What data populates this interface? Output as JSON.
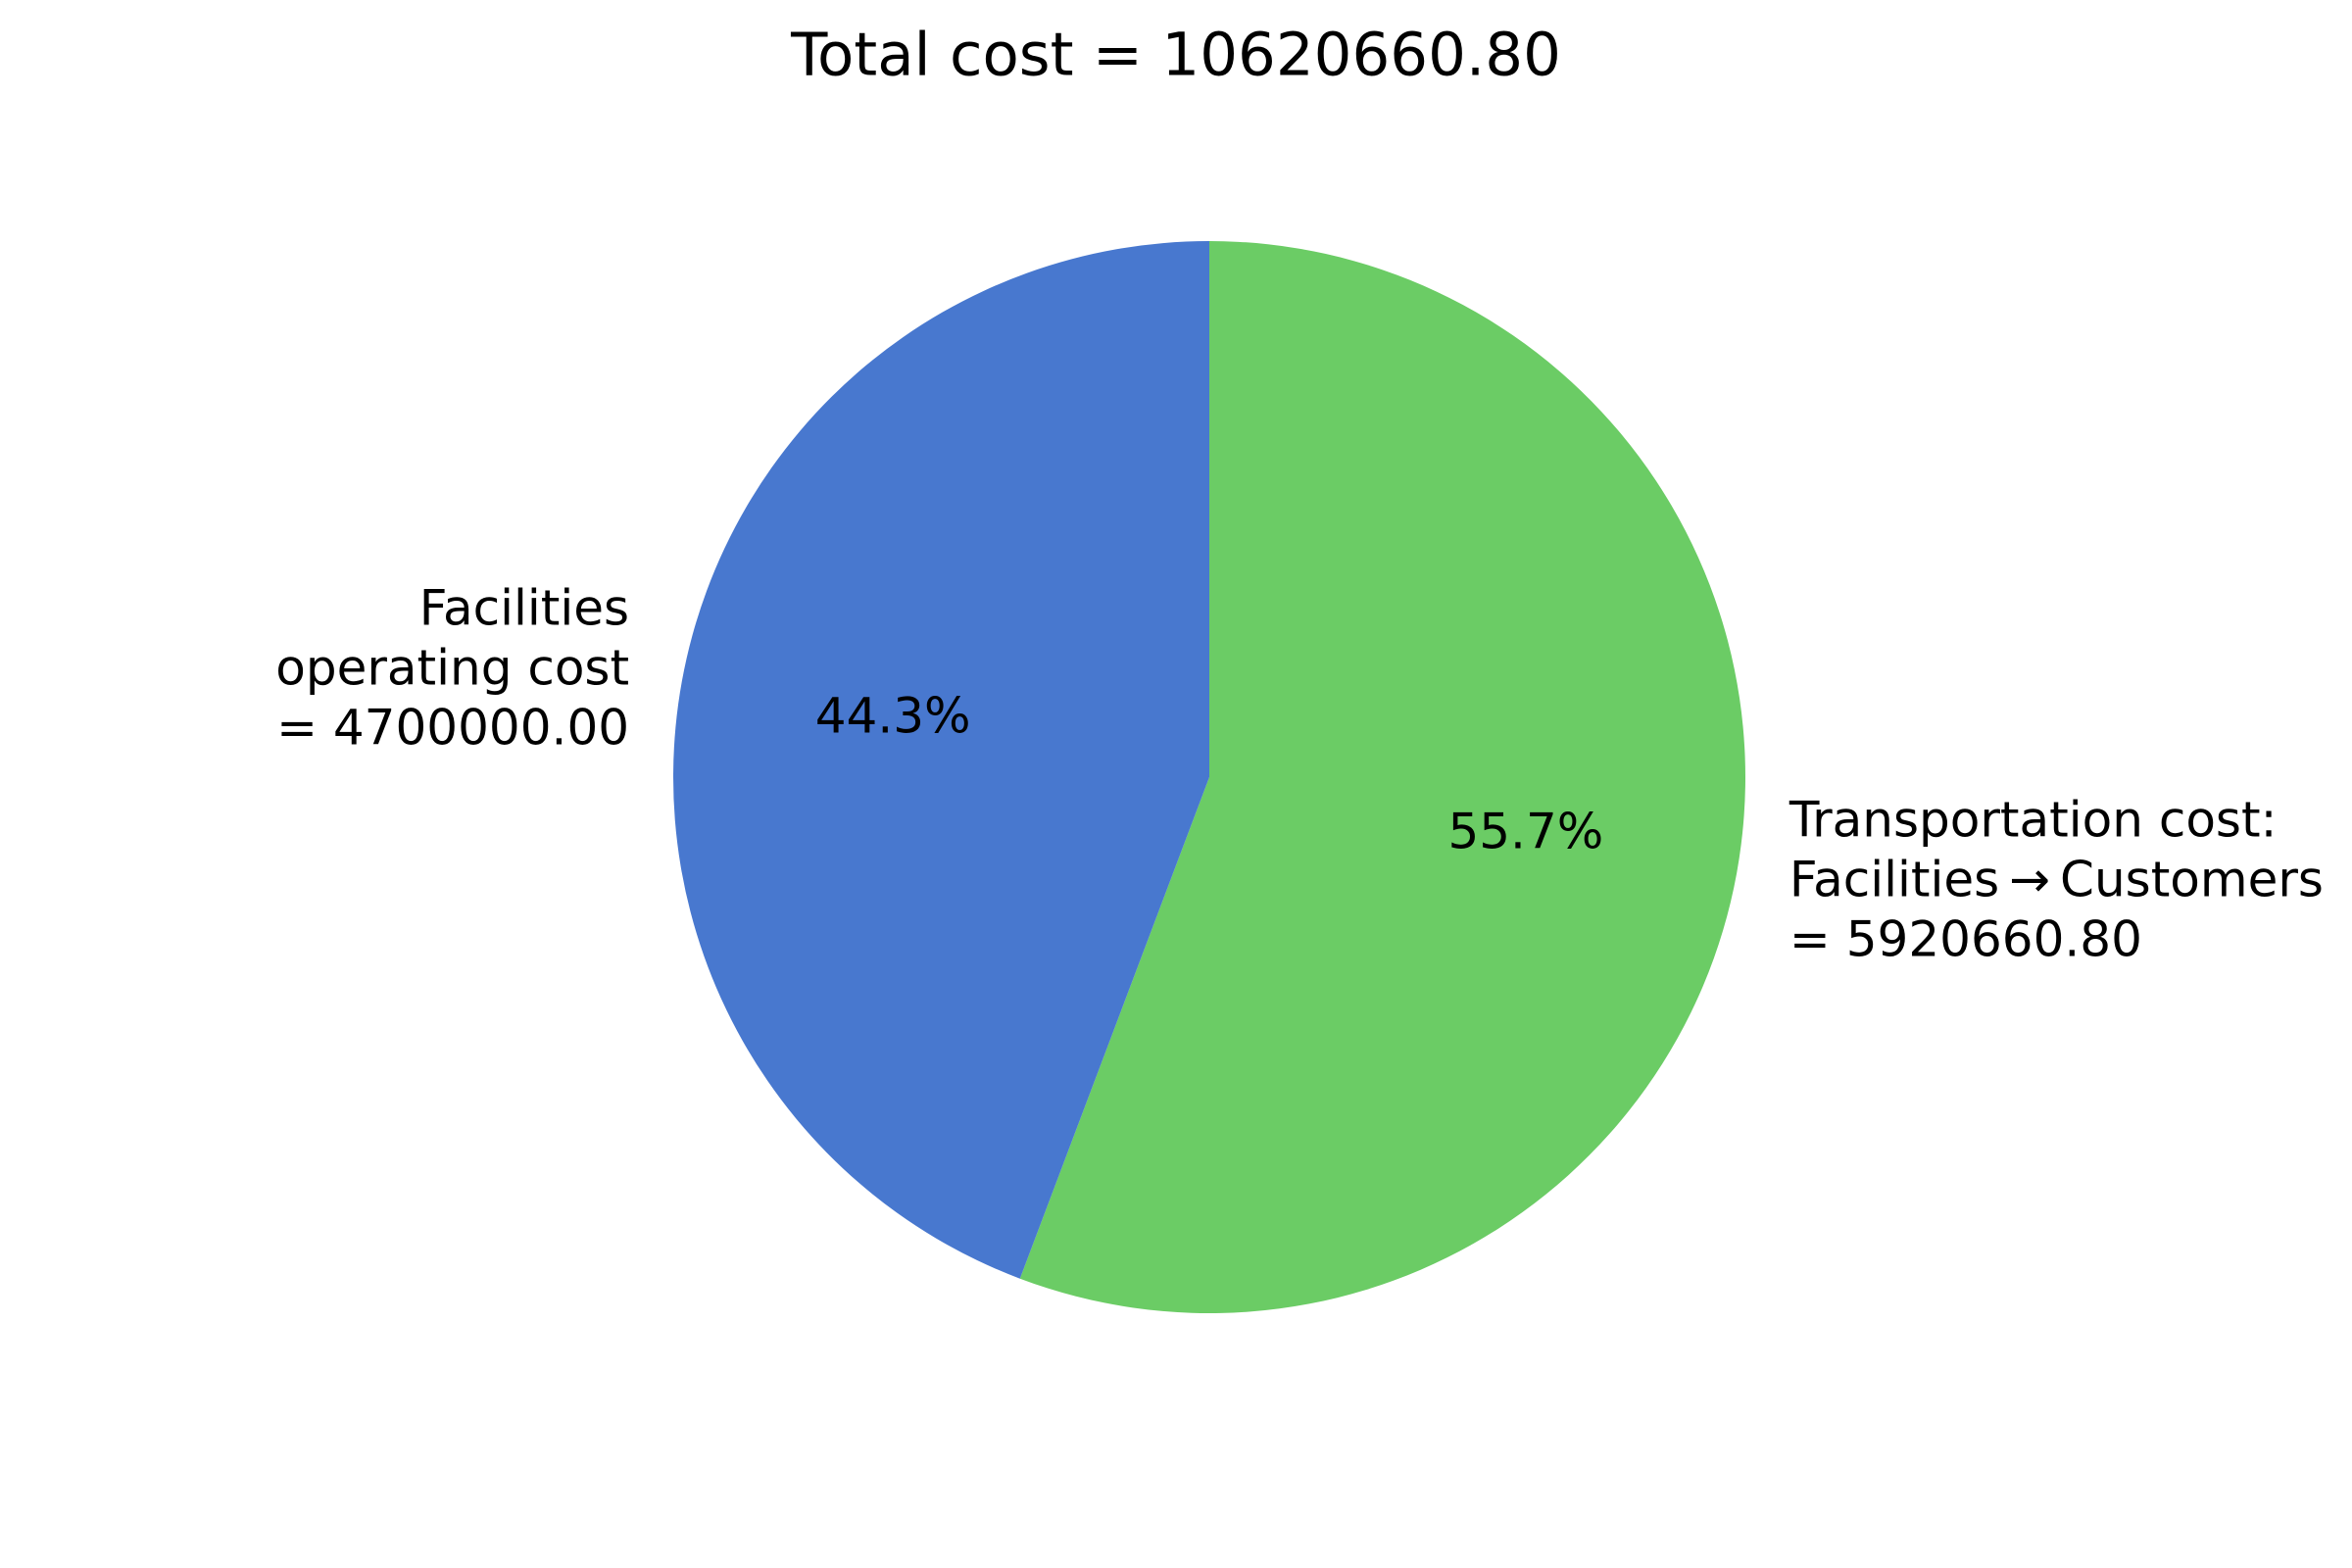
{
  "chart_data": {
    "type": "pie",
    "title": "Total cost = 10620660.80",
    "start_angle_deg": 90,
    "direction": "clockwise",
    "slices": [
      {
        "key": "transportation",
        "value": 5920660.8,
        "percent_label": "55.7%",
        "label_lines": [
          "Transportation cost:",
          "Facilities → Customers",
          "= 5920660.80"
        ],
        "color": "#6bcc65"
      },
      {
        "key": "facilities",
        "value": 4700000.0,
        "percent_label": "44.3%",
        "label_lines": [
          "Facilities",
          "operating cost",
          "= 4700000.00"
        ],
        "color": "#4878cf"
      }
    ]
  }
}
